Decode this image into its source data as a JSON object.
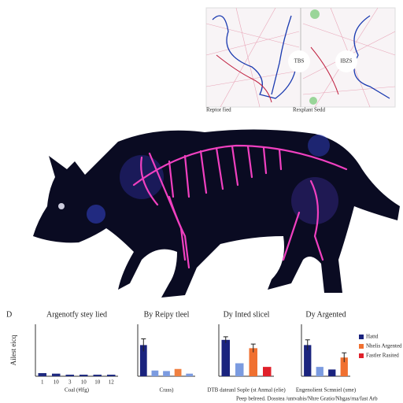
{
  "panel_letter": "D",
  "inset": {
    "labels": [
      "TBS",
      "IBZS"
    ],
    "captions": [
      "Reptor fied",
      "Rexplant Sedd"
    ]
  },
  "footer": "Peep belreed. Dosstea /untvabis/Nhre Gratio/Nhgas/rna/fast Arb",
  "chart_data": [
    {
      "type": "bar",
      "title": "Argenotfy stey lied",
      "y_label": "Ailest eicq",
      "x_label": "Coal (#lfg)",
      "categories": [
        "1",
        "10",
        "3",
        "10",
        "10",
        "12"
      ],
      "values": [
        6,
        5,
        3,
        3,
        3,
        3
      ],
      "colors": [
        "#1f2a80",
        "#1f2a80",
        "#1f2a80",
        "#1f2a80",
        "#1f2a80",
        "#1f2a80"
      ],
      "ylim": [
        0,
        100
      ]
    },
    {
      "type": "bar",
      "title": "By Reipy tleel",
      "x_label": "Crass)",
      "categories": [
        null,
        null,
        null,
        null,
        null
      ],
      "values": [
        60,
        11,
        10,
        14,
        5
      ],
      "errors": [
        12,
        null,
        null,
        null,
        null
      ],
      "colors": [
        "#1a237e",
        "#7b9be0",
        "#7b9be0",
        "#f08040",
        "#7b9be0"
      ],
      "ylim": [
        0,
        100
      ]
    },
    {
      "type": "bar",
      "title": "Dy Inted slicel",
      "x_label": "DTB dateanl Sople (st Anmal (elie)",
      "categories": [
        null,
        null,
        null,
        null
      ],
      "values": [
        70,
        25,
        54,
        18
      ],
      "errors": [
        6,
        null,
        8,
        null
      ],
      "colors": [
        "#1a237e",
        "#7b9be0",
        "#f07030",
        "#e0202a"
      ],
      "ylim": [
        0,
        100
      ]
    },
    {
      "type": "bar",
      "title": "Dy Argented",
      "x_label": "Engenolient Scmniel (sme)",
      "categories": [
        null,
        null,
        null,
        null
      ],
      "values": [
        60,
        18,
        13,
        36
      ],
      "errors": [
        10,
        null,
        null,
        9
      ],
      "colors": [
        "#1a237e",
        "#7b9be0",
        "#1a237e",
        "#f07030"
      ],
      "ylim": [
        0,
        100
      ],
      "legend": [
        {
          "name": "Hattd",
          "color": "#1a237e"
        },
        {
          "name": "Nhelis Argented",
          "color": "#f07030"
        },
        {
          "name": "Fastler Rasited",
          "color": "#e0202a"
        }
      ]
    }
  ]
}
